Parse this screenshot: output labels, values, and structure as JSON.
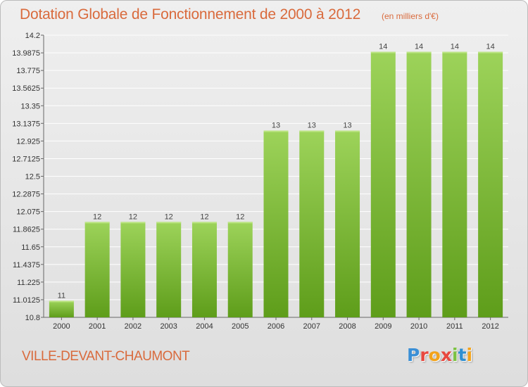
{
  "header": {
    "title": "Dotation Globale de Fonctionnement de 2000 à 2012",
    "subtitle": "(en milliers d'€)"
  },
  "footer": {
    "commune": "VILLE-DEVANT-CHAUMONT",
    "logo": {
      "letters": [
        "P",
        "r",
        "o",
        "x",
        "i",
        "t",
        "i"
      ],
      "colors": [
        "#3a8fd6",
        "#e8483f",
        "#f2a31b",
        "#e8483f",
        "#7cc242",
        "#2f8fd1",
        "#f2a31b"
      ]
    }
  },
  "chart_data": {
    "type": "bar",
    "categories": [
      "2000",
      "2001",
      "2002",
      "2003",
      "2004",
      "2005",
      "2006",
      "2007",
      "2008",
      "2009",
      "2010",
      "2011",
      "2012"
    ],
    "values": [
      11.0,
      11.95,
      11.95,
      11.95,
      11.95,
      11.95,
      13.05,
      13.05,
      13.05,
      14.0,
      14.0,
      14.0,
      14.0
    ],
    "data_labels": [
      "11",
      "12",
      "12",
      "12",
      "12",
      "12",
      "13",
      "13",
      "13",
      "14",
      "14",
      "14",
      "14"
    ],
    "yticks": [
      10.8,
      11.0125,
      11.225,
      11.4375,
      11.65,
      11.8625,
      12.075,
      12.2875,
      12.5,
      12.7125,
      12.925,
      13.1375,
      13.35,
      13.5625,
      13.775,
      13.9875,
      14.2
    ],
    "ytick_labels": [
      "10.8",
      "11.0125",
      "11.225",
      "11.4375",
      "11.65",
      "11.8625",
      "12.075",
      "12.2875",
      "12.5",
      "12.7125",
      "12.925",
      "13.1375",
      "13.35",
      "13.5625",
      "13.775",
      "13.9875",
      "14.2"
    ],
    "ylim": [
      10.8,
      14.2
    ],
    "xlabel": "",
    "ylabel": "",
    "grid": true,
    "colors": {
      "bar_top": "#9dd35a",
      "bar_bottom": "#5e9d1a",
      "grid": "#ffffff",
      "text_accent": "#d96a3c"
    }
  }
}
